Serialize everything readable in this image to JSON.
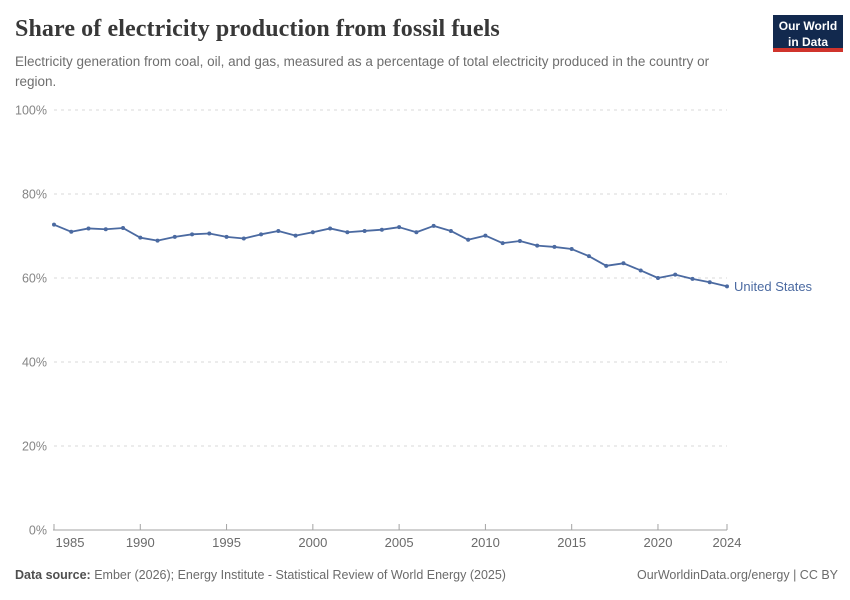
{
  "header": {
    "title": "Share of electricity production from fossil fuels",
    "subtitle": "Electricity generation from coal, oil, and gas, measured as a percentage of total electricity produced in the country or region.",
    "logo": {
      "line1": "Our World",
      "line2": "in Data"
    }
  },
  "chart_data": {
    "type": "line",
    "title": "Share of electricity production from fossil fuels",
    "x": [
      1985,
      1986,
      1987,
      1988,
      1989,
      1990,
      1991,
      1992,
      1993,
      1994,
      1995,
      1996,
      1997,
      1998,
      1999,
      2000,
      2001,
      2002,
      2003,
      2004,
      2005,
      2006,
      2007,
      2008,
      2009,
      2010,
      2011,
      2012,
      2013,
      2014,
      2015,
      2016,
      2017,
      2018,
      2019,
      2020,
      2021,
      2022,
      2023,
      2024
    ],
    "series": [
      {
        "name": "United States",
        "color": "#4b6aa1",
        "values": [
          72.7,
          71.0,
          71.8,
          71.6,
          71.9,
          69.6,
          68.9,
          69.8,
          70.4,
          70.6,
          69.8,
          69.4,
          70.4,
          71.2,
          70.1,
          70.9,
          71.8,
          70.9,
          71.2,
          71.5,
          72.1,
          70.9,
          72.4,
          71.2,
          69.1,
          70.1,
          68.3,
          68.8,
          67.7,
          67.4,
          66.9,
          65.2,
          62.9,
          63.5,
          61.8,
          60.0,
          60.8,
          59.8,
          59.0,
          58.0
        ]
      }
    ],
    "xlabel": "",
    "ylabel": "",
    "ylim": [
      0,
      100
    ],
    "yticks": [
      0,
      20,
      40,
      60,
      80,
      100
    ],
    "ytick_suffix": "%",
    "xticks": [
      1985,
      1990,
      1995,
      2000,
      2005,
      2010,
      2015,
      2020,
      2024
    ],
    "grid": true,
    "grid_style": "dashed",
    "legend_position": "end-of-line"
  },
  "footer": {
    "source_label": "Data source:",
    "source_text": " Ember (2026); Energy Institute - Statistical Review of World Energy (2025)",
    "rights": "OurWorldinData.org/energy | CC BY"
  },
  "colors": {
    "series_blue": "#4b6aa1",
    "logo_navy": "#12294e",
    "logo_red": "#d0342c",
    "gridline": "#dadada",
    "axis": "#a3a3a3",
    "y_tick_label": "#858585",
    "x_tick_label": "#6b6b6b",
    "title_text": "#383838",
    "subtitle_text": "#6e6e6e"
  }
}
